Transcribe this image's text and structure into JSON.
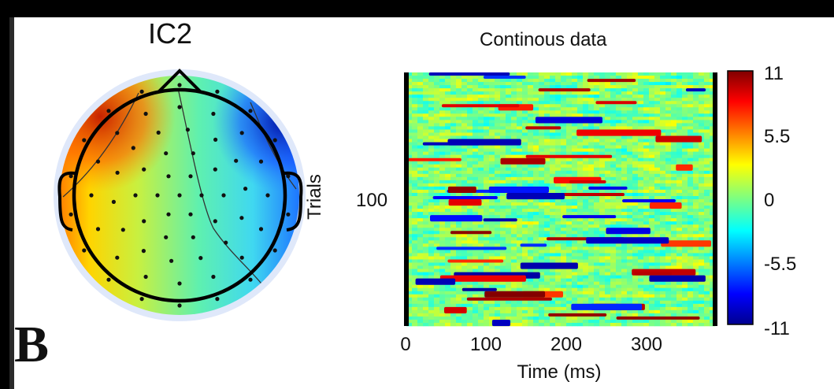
{
  "panel_letter": "B",
  "topomap": {
    "title": "IC2"
  },
  "chart_data": {
    "type": "heatmap",
    "title": "Continous data",
    "xlabel": "Time (ms)",
    "ylabel": "Trials",
    "x_ticks": [
      0,
      100,
      200,
      300
    ],
    "x_tick_labels": [
      "0",
      "100",
      "200",
      "300"
    ],
    "xlim": [
      0,
      380
    ],
    "y_ticks": [
      100
    ],
    "y_tick_labels": [
      "100"
    ],
    "colorbar": {
      "colormap": "jet",
      "ticks": [
        11,
        5.5,
        0,
        -5.5,
        -11
      ],
      "tick_labels": [
        "11",
        "5.5",
        "0",
        "-5.5",
        "-11"
      ],
      "range": [
        -11,
        11
      ]
    }
  },
  "colors": {
    "background": "#000000",
    "figure_bg": "#ffffff",
    "jet_low": "#00008f",
    "jet_mid": "#7fff7f",
    "jet_high": "#800000"
  }
}
